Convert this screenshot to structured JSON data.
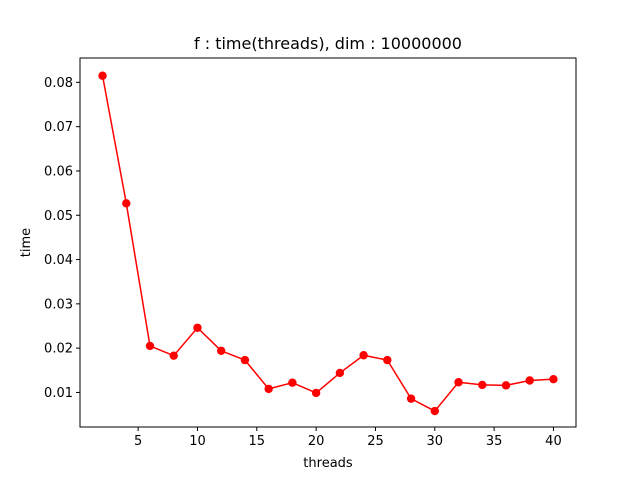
{
  "chart_data": {
    "type": "line",
    "title": "f : time(threads), dim : 10000000",
    "xlabel": "threads",
    "ylabel": "time",
    "xlim": [
      0.1,
      41.9
    ],
    "ylim": [
      0.0022,
      0.0855
    ],
    "xticks": [
      5,
      10,
      15,
      20,
      25,
      30,
      35,
      40
    ],
    "yticks": [
      0.01,
      0.02,
      0.03,
      0.04,
      0.05,
      0.06,
      0.07,
      0.08
    ],
    "xtick_labels": [
      "5",
      "10",
      "15",
      "20",
      "25",
      "30",
      "35",
      "40"
    ],
    "ytick_labels": [
      "0.01",
      "0.02",
      "0.03",
      "0.04",
      "0.05",
      "0.06",
      "0.07",
      "0.08"
    ],
    "grid": false,
    "series": [
      {
        "color": "#ff0000",
        "marker": "circle",
        "x": [
          2,
          4,
          6,
          8,
          10,
          12,
          14,
          16,
          18,
          20,
          22,
          24,
          26,
          28,
          30,
          32,
          34,
          36,
          38,
          40
        ],
        "y": [
          0.0815,
          0.0527,
          0.0205,
          0.0183,
          0.0246,
          0.0194,
          0.0173,
          0.0108,
          0.0122,
          0.0099,
          0.0144,
          0.0184,
          0.0173,
          0.0086,
          0.0058,
          0.0123,
          0.0117,
          0.0116,
          0.0127,
          0.013
        ]
      }
    ]
  }
}
